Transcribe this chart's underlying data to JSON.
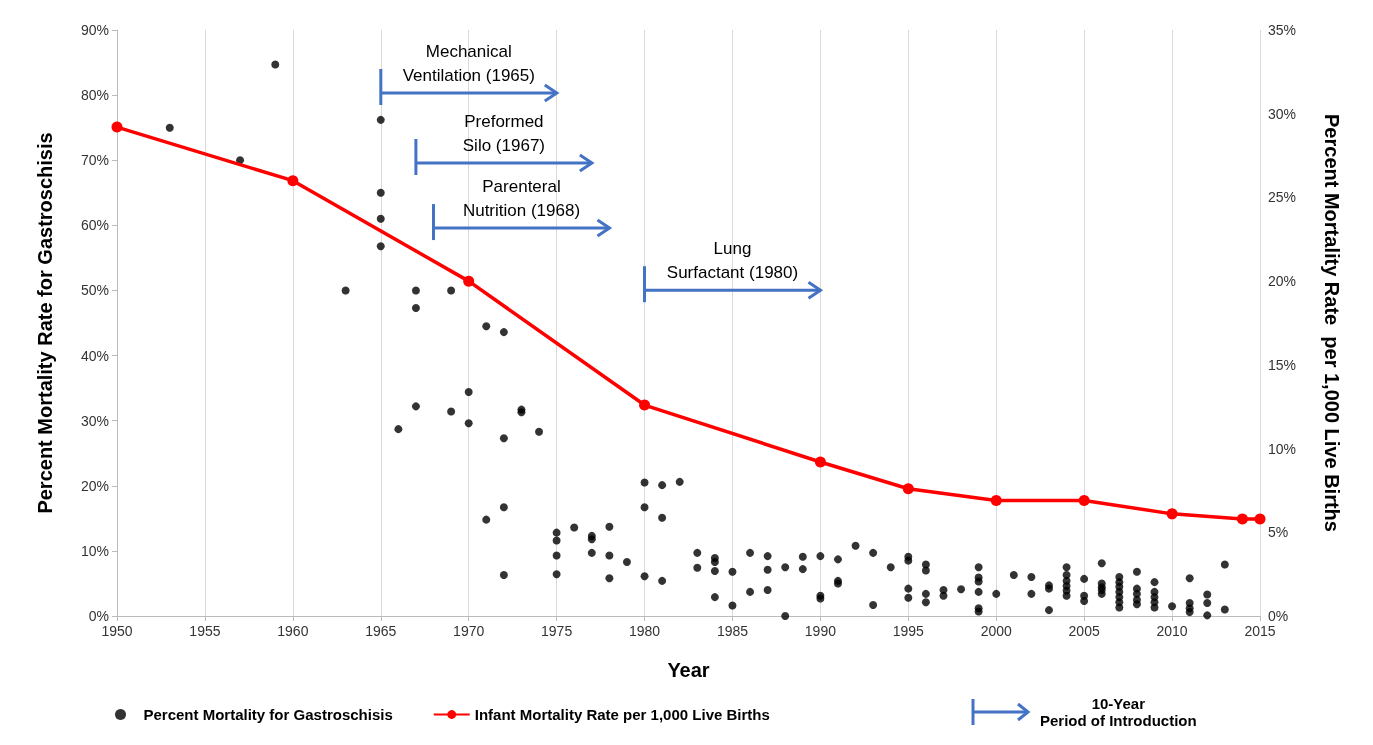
{
  "chart_data": {
    "type": "scatter",
    "xlabel": "Year",
    "ylabel": "Percent Mortality Rate for Gastroschisis",
    "y2label": "Percent Mortality Rate  per 1,000 Live Births",
    "xlim": [
      1950,
      2015
    ],
    "xticks": [
      1950,
      1955,
      1960,
      1965,
      1970,
      1975,
      1980,
      1985,
      1990,
      1995,
      2000,
      2005,
      2010,
      2015
    ],
    "ylim": [
      0,
      90
    ],
    "yticks": [
      {
        "value": 0,
        "label": "0%"
      },
      {
        "value": 10,
        "label": "10%"
      },
      {
        "value": 20,
        "label": "20%"
      },
      {
        "value": 30,
        "label": "30%"
      },
      {
        "value": 40,
        "label": "40%"
      },
      {
        "value": 50,
        "label": "50%"
      },
      {
        "value": 60,
        "label": "60%"
      },
      {
        "value": 70,
        "label": "70%"
      },
      {
        "value": 80,
        "label": "80%"
      },
      {
        "value": 90,
        "label": "90%"
      }
    ],
    "y2lim": [
      0,
      35
    ],
    "y2ticks": [
      {
        "value": 0,
        "label": "0%"
      },
      {
        "value": 5,
        "label": "5%"
      },
      {
        "value": 10,
        "label": "10%"
      },
      {
        "value": 15,
        "label": "15%"
      },
      {
        "value": 20,
        "label": "20%"
      },
      {
        "value": 25,
        "label": "25%"
      },
      {
        "value": 30,
        "label": "30%"
      },
      {
        "value": 35,
        "label": "35%"
      }
    ],
    "grid": "x",
    "legend": "bottom",
    "marker": "circle",
    "series": [
      {
        "name": "Percent Mortality for Gastroschisis",
        "color": "#000000",
        "x": [
          1953,
          1957,
          1959,
          1963,
          1965,
          1965,
          1965,
          1965,
          1966,
          1967,
          1967,
          1967,
          1969,
          1969,
          1970,
          1970,
          1971,
          1971,
          1972,
          1972,
          1972,
          1972,
          1973,
          1973,
          1974,
          1975,
          1975,
          1975,
          1975,
          1976,
          1977,
          1977,
          1977,
          1978,
          1978,
          1978,
          1979,
          1980,
          1980,
          1980,
          1981,
          1981,
          1981,
          1982,
          1983,
          1983,
          1984,
          1984,
          1984,
          1984,
          1985,
          1985,
          1986,
          1986,
          1987,
          1987,
          1987,
          1988,
          1988,
          1989,
          1989,
          1990,
          1990,
          1990,
          1991,
          1991,
          1991,
          1992,
          1993,
          1993,
          1994,
          1995,
          1995,
          1995,
          1995,
          1996,
          1996,
          1996,
          1996,
          1997,
          1997,
          1998,
          1999,
          1999,
          1999,
          1999,
          1999,
          1999,
          2000,
          2001,
          2002,
          2002,
          2003,
          2003,
          2003,
          2004,
          2004,
          2004,
          2004,
          2004,
          2004,
          2005,
          2005,
          2005,
          2006,
          2006,
          2006,
          2006,
          2006,
          2007,
          2007,
          2007,
          2007,
          2007,
          2007,
          2007,
          2008,
          2008,
          2008,
          2008,
          2008,
          2009,
          2009,
          2009,
          2009,
          2009,
          2010,
          2011,
          2011,
          2011,
          2011,
          2012,
          2012,
          2012,
          2013,
          2013
        ],
        "values": [
          75,
          70,
          84.7,
          50,
          76.2,
          65,
          61,
          56.8,
          28.7,
          50,
          47.3,
          32.2,
          50,
          31.4,
          34.4,
          29.6,
          44.5,
          14.8,
          43.6,
          27.3,
          16.7,
          6.3,
          31.7,
          31.3,
          28.3,
          12.8,
          11.6,
          9.3,
          6.4,
          13.6,
          12.3,
          11.8,
          9.7,
          13.7,
          9.3,
          5.8,
          8.3,
          20.5,
          16.7,
          6.1,
          20.1,
          15.1,
          5.4,
          20.6,
          9.7,
          7.4,
          8.9,
          8.3,
          6.9,
          2.9,
          6.8,
          1.6,
          9.7,
          3.7,
          9.2,
          7.1,
          4.0,
          7.5,
          0,
          9.1,
          7.2,
          9.2,
          3.1,
          2.7,
          8.7,
          5.4,
          5.0,
          10.8,
          9.7,
          1.7,
          7.5,
          9.1,
          8.5,
          4.2,
          2.8,
          7.9,
          7.0,
          3.4,
          2.1,
          4.0,
          3.1,
          4.1,
          7.5,
          5.9,
          5.3,
          3.7,
          1.2,
          0.7,
          3.4,
          6.3,
          6.0,
          3.4,
          4.7,
          4.2,
          0.9,
          7.5,
          6.3,
          5.4,
          4.6,
          3.9,
          3.1,
          5.7,
          3.1,
          2.3,
          8.1,
          5.0,
          4.4,
          4.0,
          3.4,
          6.0,
          5.2,
          4.5,
          3.7,
          2.9,
          2.1,
          1.3,
          6.8,
          4.2,
          3.4,
          2.5,
          1.8,
          5.2,
          3.7,
          2.9,
          2.1,
          1.3,
          1.5,
          5.8,
          2.0,
          1.2,
          0.6,
          3.3,
          2.0,
          0.1,
          7.9,
          1.0
        ]
      },
      {
        "name": "Infant Mortality Rate per 1,000 Live Births",
        "type": "line",
        "axis": "y2",
        "color": "#ff0000",
        "x": [
          1950,
          1960,
          1970,
          1980,
          1990,
          1995,
          2000,
          2005,
          2010,
          2014,
          2015
        ],
        "values": [
          29.2,
          26.0,
          20.0,
          12.6,
          9.2,
          7.6,
          6.9,
          6.9,
          6.1,
          5.8,
          5.8
        ]
      }
    ],
    "annotations": [
      "Mechanical\nVentilation (1965)",
      "Preformed\nSilo (1967)",
      "Parenteral\nNutrition (1968)",
      "Lung\nSurfactant (1980)",
      "10-Year\nPeriod of Introduction"
    ]
  }
}
